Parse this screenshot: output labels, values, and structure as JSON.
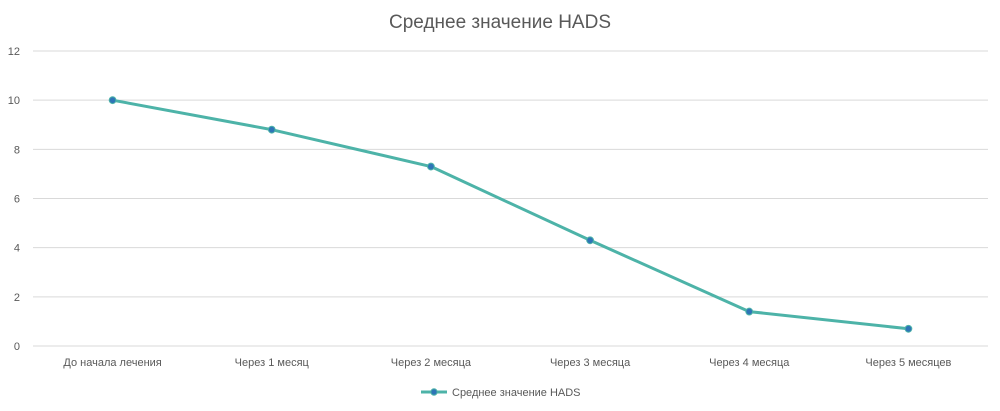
{
  "chart_data": {
    "type": "line",
    "title": "Среднее значение HADS",
    "xlabel": "",
    "ylabel": "",
    "categories": [
      "До начала лечения",
      "Через 1 месяц",
      "Через 2 месяца",
      "Через 3 месяца",
      "Через 4 месяца",
      "Через 5 месяцев"
    ],
    "series": [
      {
        "name": "Среднее значение HADS",
        "values": [
          10,
          8.8,
          7.3,
          4.3,
          1.4,
          0.7
        ],
        "color": "#4db3a8",
        "marker_color": "#2e75b6"
      }
    ],
    "ylim": [
      0,
      12
    ],
    "yticks": [
      0,
      2,
      4,
      6,
      8,
      10,
      12
    ],
    "grid": true,
    "legend": "bottom"
  }
}
